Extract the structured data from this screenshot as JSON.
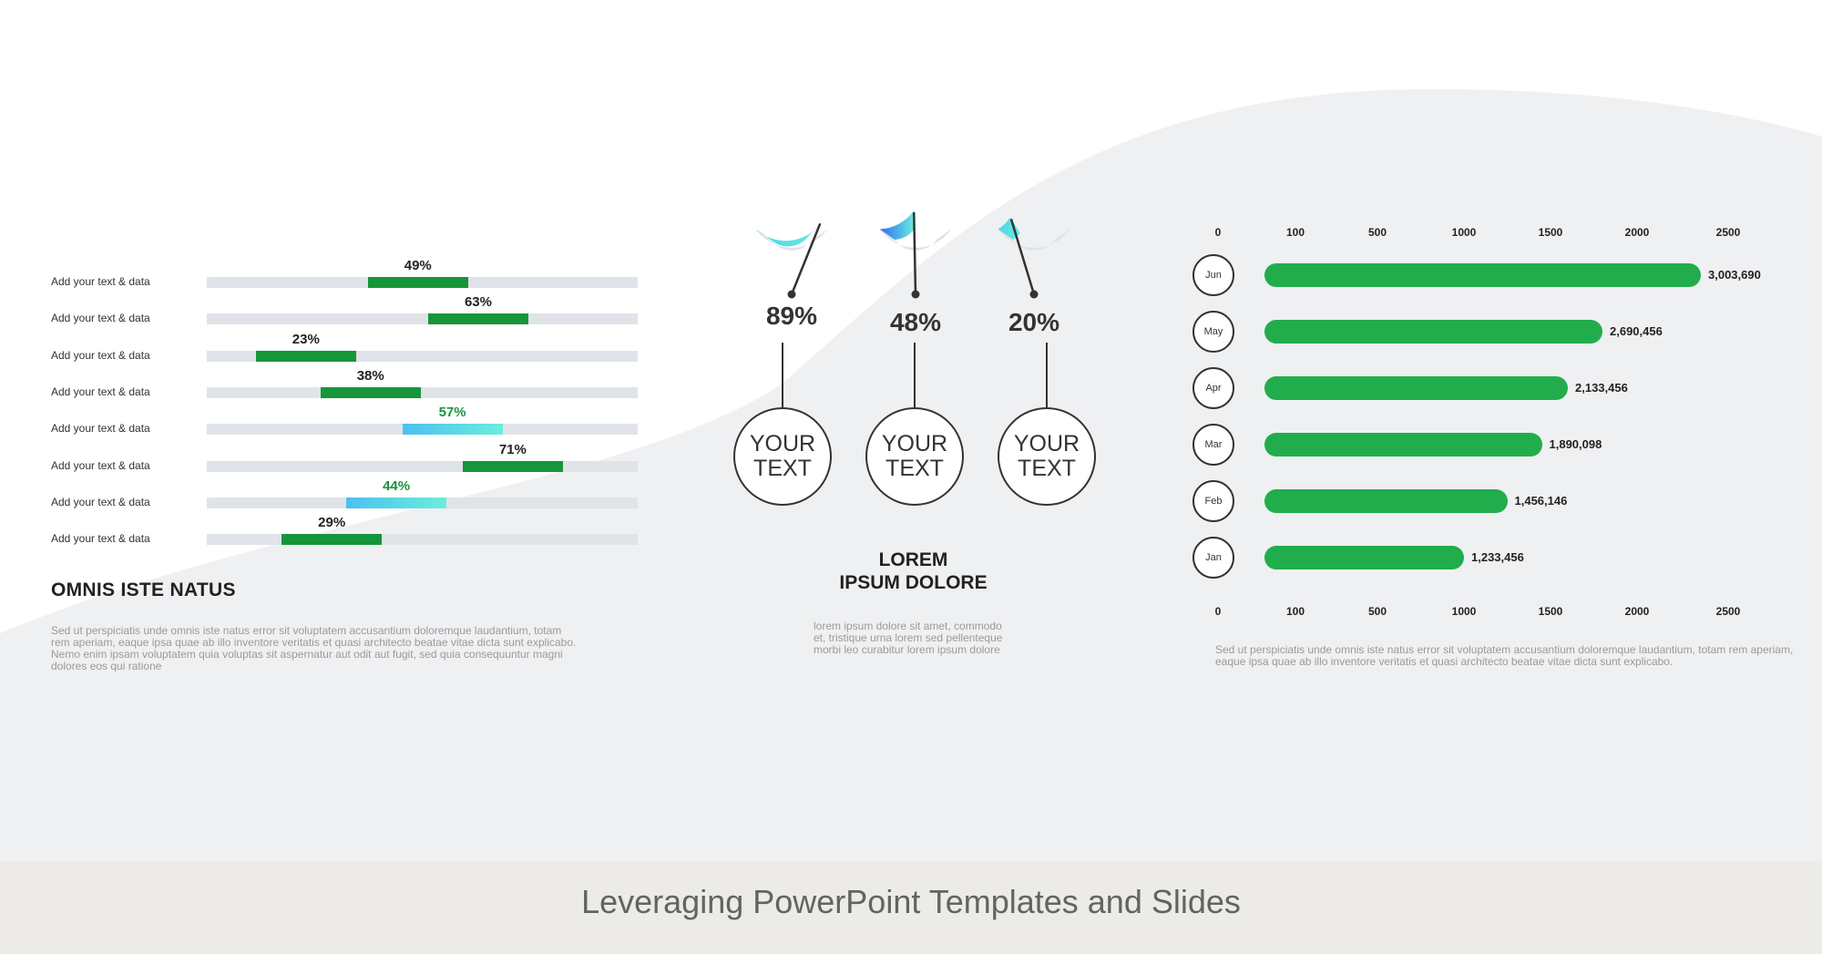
{
  "colors": {
    "green": "#16953a",
    "bar_green": "#22ad4c",
    "track": "#e0e3e7",
    "gradient_start": "#4cc0f0",
    "gradient_end": "#6aeedb"
  },
  "left": {
    "rows": [
      {
        "label": "Add your text & data",
        "value": 49,
        "style": "green"
      },
      {
        "label": "Add your text & data",
        "value": 63,
        "style": "green"
      },
      {
        "label": "Add your text & data",
        "value": 23,
        "style": "green"
      },
      {
        "label": "Add your text & data",
        "value": 38,
        "style": "green"
      },
      {
        "label": "Add your text & data",
        "value": 57,
        "style": "gradient"
      },
      {
        "label": "Add your text & data",
        "value": 71,
        "style": "green"
      },
      {
        "label": "Add your text & data",
        "value": 44,
        "style": "gradient"
      },
      {
        "label": "Add your text & data",
        "value": 29,
        "style": "green"
      }
    ],
    "title": "OMNIS ISTE NATUS",
    "description": "Sed ut perspiciatis unde omnis iste natus error sit voluptatem accusantium doloremque laudantium, totam rem aperiam, eaque ipsa quae ab illo inventore veritatis et quasi architecto beatae vitae dicta sunt explicabo. Nemo enim ipsam voluptatem quia voluptas sit aspernatur aut odit aut fugit, sed quia consequuntur magni dolores eos qui ratione"
  },
  "middle": {
    "gauges": [
      {
        "value": 89,
        "label": "89%",
        "circle_text": "YOUR TEXT"
      },
      {
        "value": 48,
        "label": "48%",
        "circle_text": "YOUR TEXT"
      },
      {
        "value": 20,
        "label": "20%",
        "circle_text": "YOUR TEXT"
      }
    ],
    "title_line1": "LOREM",
    "title_line2": "IPSUM DOLORE",
    "description": "lorem ipsum dolore sit amet, commodo et, tristique urna lorem sed pellenteque morbi leo curabitur lorem ipsum dolore"
  },
  "chart_data": {
    "type": "bar",
    "orientation": "horizontal",
    "categories": [
      "Jun",
      "May",
      "Apr",
      "Mar",
      "Feb",
      "Jan"
    ],
    "values": [
      3003690,
      2690456,
      2133456,
      1890098,
      1456146,
      1233456
    ],
    "value_labels": [
      "3,003,690",
      "2,690,456",
      "2,133,456",
      "1,890,098",
      "1,456,146",
      "1,233,456"
    ],
    "x_ticks": [
      "0",
      "100",
      "500",
      "1000",
      "1500",
      "2000",
      "2500"
    ],
    "bar_end_on_axis": [
      2350,
      1800,
      1600,
      1450,
      1250,
      1000
    ],
    "grid": false
  },
  "right": {
    "description": "Sed ut perspiciatis unde omnis iste natus error sit voluptatem accusantium doloremque laudantium, totam rem aperiam, eaque ipsa quae ab illo inventore veritatis et quasi architecto beatae vitae dicta sunt explicabo."
  },
  "footer": {
    "title": "Leveraging PowerPoint Templates and Slides"
  }
}
